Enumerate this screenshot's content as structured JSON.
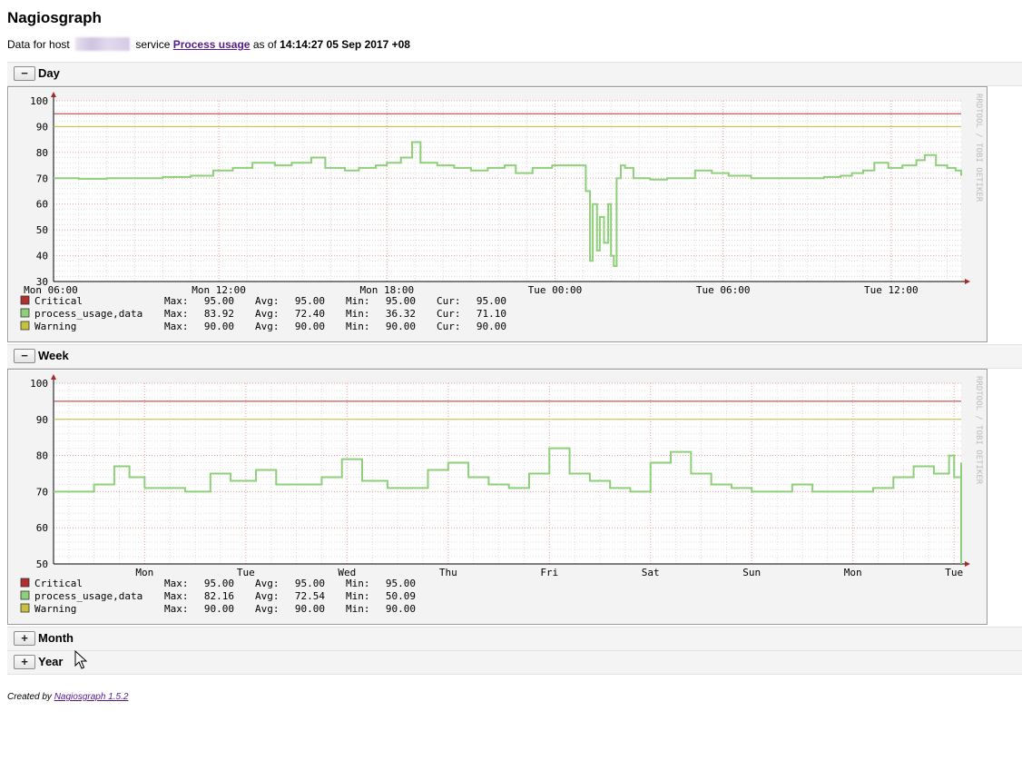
{
  "page": {
    "title": "Nagiosgraph",
    "data_for_prefix": "Data for host",
    "service_prefix": "service",
    "service_link": "Process usage",
    "as_of_prefix": "as of",
    "timestamp": "14:14:27 05 Sep 2017 +08"
  },
  "sections": [
    {
      "label": "Day",
      "toggle": "−",
      "expanded": true
    },
    {
      "label": "Week",
      "toggle": "−",
      "expanded": true
    },
    {
      "label": "Month",
      "toggle": "+",
      "expanded": false
    },
    {
      "label": "Year",
      "toggle": "+",
      "expanded": false
    }
  ],
  "footer": {
    "prefix": "Created by",
    "link": "Nagiosgraph 1.5.2"
  },
  "chart_data": [
    {
      "type": "line",
      "section": "Day",
      "watermark": "RRDTOOL / TOBI OETIKER",
      "x_tick_labels": [
        "Mon 06:00",
        "Mon 12:00",
        "Mon 18:00",
        "Tue 00:00",
        "Tue 06:00",
        "Tue 12:00"
      ],
      "x_tick_hours": [
        6,
        12,
        18,
        24,
        30,
        36
      ],
      "x_range_hours": [
        6.1,
        38.5
      ],
      "ylim": [
        30,
        100
      ],
      "y_ticks": [
        30,
        40,
        50,
        60,
        70,
        80,
        90,
        100
      ],
      "colors": {
        "critical": "#b03030",
        "data": "#8ecf7a",
        "warning": "#c8c040",
        "grid_major": "#e8a0a0",
        "grid_minor": "#dddddd"
      },
      "series": [
        {
          "name": "Critical",
          "color": "#b03030",
          "values": [
            [
              6.1,
              95
            ],
            [
              38.5,
              95
            ]
          ]
        },
        {
          "name": "process_usage,data",
          "color": "#8ecf7a",
          "values": [
            [
              6.1,
              70
            ],
            [
              7,
              69.8
            ],
            [
              8.0,
              70
            ],
            [
              9,
              70
            ],
            [
              10,
              70.5
            ],
            [
              11,
              71
            ],
            [
              11.8,
              73
            ],
            [
              12.5,
              74
            ],
            [
              13.2,
              76
            ],
            [
              14.0,
              75
            ],
            [
              14.6,
              76
            ],
            [
              15.3,
              78
            ],
            [
              15.8,
              74
            ],
            [
              16.5,
              73
            ],
            [
              17.0,
              74
            ],
            [
              17.6,
              75
            ],
            [
              18.0,
              76
            ],
            [
              18.5,
              78
            ],
            [
              18.9,
              84
            ],
            [
              19.2,
              76
            ],
            [
              19.8,
              75
            ],
            [
              20.4,
              74
            ],
            [
              21.0,
              73
            ],
            [
              21.6,
              74
            ],
            [
              22.2,
              75
            ],
            [
              22.6,
              72
            ],
            [
              23.2,
              74
            ],
            [
              23.9,
              75
            ],
            [
              24.6,
              75
            ],
            [
              24.9,
              75
            ],
            [
              25.1,
              65
            ],
            [
              25.25,
              38
            ],
            [
              25.35,
              60
            ],
            [
              25.5,
              42
            ],
            [
              25.6,
              55
            ],
            [
              25.75,
              45
            ],
            [
              25.9,
              60
            ],
            [
              26.0,
              40
            ],
            [
              26.1,
              36
            ],
            [
              26.2,
              70
            ],
            [
              26.35,
              75
            ],
            [
              26.5,
              74
            ],
            [
              26.8,
              70
            ],
            [
              27.4,
              69.5
            ],
            [
              28.0,
              70
            ],
            [
              28.6,
              70
            ],
            [
              29.0,
              73
            ],
            [
              29.6,
              72
            ],
            [
              30.2,
              71
            ],
            [
              31.0,
              70
            ],
            [
              31.8,
              70
            ],
            [
              32.6,
              70
            ],
            [
              33.6,
              70.5
            ],
            [
              34.2,
              71
            ],
            [
              34.6,
              72
            ],
            [
              35.0,
              73
            ],
            [
              35.4,
              76
            ],
            [
              35.9,
              74
            ],
            [
              36.4,
              75
            ],
            [
              36.9,
              77
            ],
            [
              37.2,
              79
            ],
            [
              37.6,
              75
            ],
            [
              38.0,
              74
            ],
            [
              38.3,
              73
            ],
            [
              38.5,
              71
            ]
          ]
        },
        {
          "name": "Warning",
          "color": "#c8c040",
          "values": [
            [
              6.1,
              90
            ],
            [
              38.5,
              90
            ]
          ]
        }
      ],
      "legend": [
        {
          "name": "Critical",
          "color": "#b03030",
          "max": "95.00",
          "avg": "95.00",
          "min": "95.00",
          "cur": "95.00"
        },
        {
          "name": "process_usage,data",
          "color": "#8ecf7a",
          "max": "83.92",
          "avg": "72.40",
          "min": "36.32",
          "cur": "71.10"
        },
        {
          "name": "Warning",
          "color": "#c8c040",
          "max": "90.00",
          "avg": "90.00",
          "min": "90.00",
          "cur": "90.00"
        }
      ],
      "legend_labels": {
        "max": "Max:",
        "avg": "Avg:",
        "min": "Min:",
        "cur": "Cur:"
      }
    },
    {
      "type": "line",
      "section": "Week",
      "watermark": "RRDTOOL / TOBI OETIKER",
      "x_tick_labels": [
        "Mon",
        "Tue",
        "Wed",
        "Thu",
        "Fri",
        "Sat",
        "Sun",
        "Mon",
        "Tue"
      ],
      "x_tick_days": [
        1,
        2,
        3,
        4,
        5,
        6,
        7,
        8,
        9
      ],
      "x_range_days": [
        0.1,
        9.07
      ],
      "ylim": [
        50,
        100
      ],
      "y_ticks": [
        50,
        60,
        70,
        80,
        90,
        100
      ],
      "colors": {
        "critical": "#b03030",
        "data": "#8ecf7a",
        "warning": "#c8c040",
        "grid_major": "#e8a0a0",
        "grid_minor": "#dddddd"
      },
      "series": [
        {
          "name": "Critical",
          "color": "#b03030",
          "values": [
            [
              0.1,
              95
            ],
            [
              9.07,
              95
            ]
          ]
        },
        {
          "name": "process_usage,data",
          "color": "#8ecf7a",
          "values": [
            [
              0.1,
              70
            ],
            [
              0.3,
              70
            ],
            [
              0.5,
              72
            ],
            [
              0.7,
              77
            ],
            [
              0.85,
              74
            ],
            [
              1.0,
              71
            ],
            [
              1.2,
              71
            ],
            [
              1.4,
              70
            ],
            [
              1.65,
              75
            ],
            [
              1.85,
              73
            ],
            [
              2.1,
              76
            ],
            [
              2.3,
              72
            ],
            [
              2.55,
              72
            ],
            [
              2.75,
              74
            ],
            [
              2.95,
              79
            ],
            [
              3.15,
              73
            ],
            [
              3.4,
              71
            ],
            [
              3.6,
              71
            ],
            [
              3.8,
              76
            ],
            [
              4.0,
              78
            ],
            [
              4.2,
              74
            ],
            [
              4.4,
              72
            ],
            [
              4.6,
              71
            ],
            [
              4.8,
              75
            ],
            [
              5.0,
              82
            ],
            [
              5.2,
              75
            ],
            [
              5.4,
              73
            ],
            [
              5.6,
              71
            ],
            [
              5.8,
              70
            ],
            [
              6.0,
              78
            ],
            [
              6.2,
              81
            ],
            [
              6.4,
              75
            ],
            [
              6.6,
              72
            ],
            [
              6.8,
              71
            ],
            [
              7.0,
              70
            ],
            [
              7.2,
              70
            ],
            [
              7.4,
              72
            ],
            [
              7.6,
              70
            ],
            [
              7.8,
              70
            ],
            [
              8.0,
              70
            ],
            [
              8.2,
              71
            ],
            [
              8.4,
              74
            ],
            [
              8.6,
              77
            ],
            [
              8.8,
              75
            ],
            [
              8.95,
              80
            ],
            [
              9.0,
              74
            ],
            [
              9.1,
              73
            ],
            [
              9.35,
              72
            ],
            [
              9.42,
              50
            ],
            [
              9.5,
              73
            ],
            [
              9.7,
              70
            ],
            [
              9.9,
              70
            ],
            [
              10.1,
              72
            ],
            [
              10.3,
              78
            ],
            [
              10.45,
              75
            ],
            [
              10.55,
              72
            ]
          ]
        },
        {
          "name": "Warning",
          "color": "#c8c040",
          "values": [
            [
              0.1,
              90
            ],
            [
              9.07,
              90
            ]
          ]
        }
      ],
      "legend": [
        {
          "name": "Critical",
          "color": "#b03030",
          "max": "95.00",
          "avg": "95.00",
          "min": "95.00"
        },
        {
          "name": "process_usage,data",
          "color": "#8ecf7a",
          "max": "82.16",
          "avg": "72.54",
          "min": "50.09"
        },
        {
          "name": "Warning",
          "color": "#c8c040",
          "max": "90.00",
          "avg": "90.00",
          "min": "90.00"
        }
      ],
      "legend_labels": {
        "max": "Max:",
        "avg": "Avg:",
        "min": "Min:"
      }
    }
  ]
}
